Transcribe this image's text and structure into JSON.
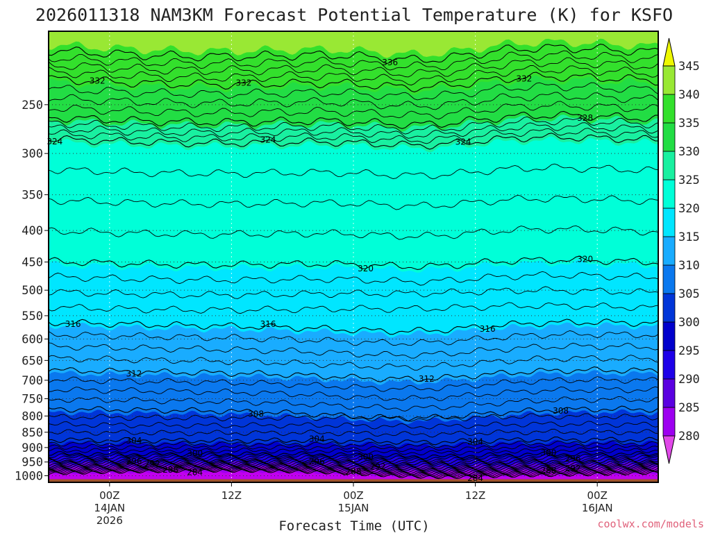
{
  "chart_data": {
    "type": "contour",
    "title": "2026011318 NAM3KM Forecast Potential Temperature (K) for KSFO",
    "xlabel": "Forecast Time (UTC)",
    "ylabel": "",
    "credit": "coolwx.com/models",
    "x_range_hours": [
      -5,
      45
    ],
    "x_ticks": [
      {
        "hour": 0,
        "lines": [
          "00Z",
          "14JAN",
          "2026"
        ]
      },
      {
        "hour": 10,
        "lines": [
          "12Z"
        ]
      },
      {
        "hour": 20,
        "lines": [
          "00Z",
          "15JAN"
        ]
      },
      {
        "hour": 30,
        "lines": [
          "12Z"
        ]
      },
      {
        "hour": 40,
        "lines": [
          "00Z",
          "16JAN"
        ]
      }
    ],
    "y_axis": {
      "scale": "log",
      "inverted": true,
      "range_hpa": [
        1025,
        190
      ]
    },
    "y_ticks": [
      250,
      300,
      350,
      400,
      450,
      500,
      550,
      600,
      650,
      700,
      750,
      800,
      850,
      900,
      950,
      1000
    ],
    "colorbar": {
      "ticks": [
        280,
        285,
        290,
        295,
        300,
        305,
        310,
        315,
        320,
        325,
        330,
        335,
        340,
        345
      ],
      "colors": [
        "#e048e8",
        "#9d00f0",
        "#5a00e0",
        "#1e00e8",
        "#0000cc",
        "#0035d8",
        "#0a78ee",
        "#19acff",
        "#00e6ff",
        "#00ffd8",
        "#19f0a0",
        "#22dd44",
        "#33e02c",
        "#99e834",
        "#c8f000",
        "#eef800"
      ]
    },
    "terrain_color": "#a0522d",
    "contour_levels": [
      {
        "level": 284,
        "p0": 990,
        "labels": [
          {
            "hour": 7,
            "text": "284"
          },
          {
            "hour": 30,
            "text": "284"
          }
        ]
      },
      {
        "level": 288,
        "p0": 978,
        "labels": [
          {
            "hour": 5,
            "text": "288"
          },
          {
            "hour": 20,
            "text": "288"
          },
          {
            "hour": 36,
            "text": "288"
          }
        ]
      },
      {
        "level": 292,
        "p0": 963,
        "labels": [
          {
            "hour": 3.5,
            "text": "292"
          },
          {
            "hour": 22,
            "text": "292"
          },
          {
            "hour": 38,
            "text": "292"
          }
        ]
      },
      {
        "level": 296,
        "p0": 945,
        "labels": [
          {
            "hour": 2,
            "text": "296"
          },
          {
            "hour": 17,
            "text": "296"
          },
          {
            "hour": 38,
            "text": "296"
          }
        ]
      },
      {
        "level": 300,
        "p0": 922,
        "labels": [
          {
            "hour": 7,
            "text": "300"
          },
          {
            "hour": 21,
            "text": "300"
          },
          {
            "hour": 36,
            "text": "300"
          }
        ]
      },
      {
        "level": 304,
        "p0": 875,
        "labels": [
          {
            "hour": 2,
            "text": "304"
          },
          {
            "hour": 17,
            "text": "304"
          },
          {
            "hour": 30,
            "text": "304"
          }
        ]
      },
      {
        "level": 308,
        "p0": 780,
        "labels": [
          {
            "hour": 12,
            "text": "308"
          },
          {
            "hour": 37,
            "text": "308"
          }
        ]
      },
      {
        "level": 312,
        "p0": 675,
        "labels": [
          {
            "hour": 2,
            "text": "312"
          },
          {
            "hour": 26,
            "text": "312"
          }
        ]
      },
      {
        "level": 316,
        "p0": 565,
        "labels": [
          {
            "hour": -3,
            "text": "316"
          },
          {
            "hour": 13,
            "text": "316"
          },
          {
            "hour": 31,
            "text": "316"
          }
        ]
      },
      {
        "level": 320,
        "p0": 450,
        "labels": [
          {
            "hour": 21,
            "text": "320"
          },
          {
            "hour": 39,
            "text": "320"
          }
        ]
      },
      {
        "level": 324,
        "p0": 285,
        "labels": [
          {
            "hour": -4.5,
            "text": "324"
          },
          {
            "hour": 13,
            "text": "324"
          },
          {
            "hour": 29,
            "text": "324"
          }
        ]
      },
      {
        "level": 328,
        "p0": 263,
        "labels": [
          {
            "hour": 39,
            "text": "328"
          }
        ]
      },
      {
        "level": 332,
        "p0": 228,
        "labels": [
          {
            "hour": -1,
            "text": "332"
          },
          {
            "hour": 11,
            "text": "332"
          },
          {
            "hour": 34,
            "text": "332"
          }
        ]
      },
      {
        "level": 336,
        "p0": 205,
        "labels": [
          {
            "hour": 23,
            "text": "336"
          }
        ]
      }
    ],
    "fill_bands": [
      {
        "range": [
          330,
          335
        ],
        "color": "#22dd44"
      },
      {
        "range": [
          325,
          330
        ],
        "color": "#19f0a0"
      },
      {
        "range": [
          320,
          325
        ],
        "color": "#00ffd8"
      },
      {
        "range": [
          315,
          320
        ],
        "color": "#00e6ff"
      },
      {
        "range": [
          310,
          315
        ],
        "color": "#19acff"
      },
      {
        "range": [
          305,
          310
        ],
        "color": "#0a78ee"
      },
      {
        "range": [
          300,
          305
        ],
        "color": "#0035d8"
      },
      {
        "range": [
          295,
          300
        ],
        "color": "#0000cc"
      },
      {
        "range": [
          290,
          295
        ],
        "color": "#1e00e8"
      },
      {
        "range": [
          285,
          290
        ],
        "color": "#5a00e0"
      },
      {
        "range": [
          280,
          285
        ],
        "color": "#9d00f0"
      }
    ]
  }
}
